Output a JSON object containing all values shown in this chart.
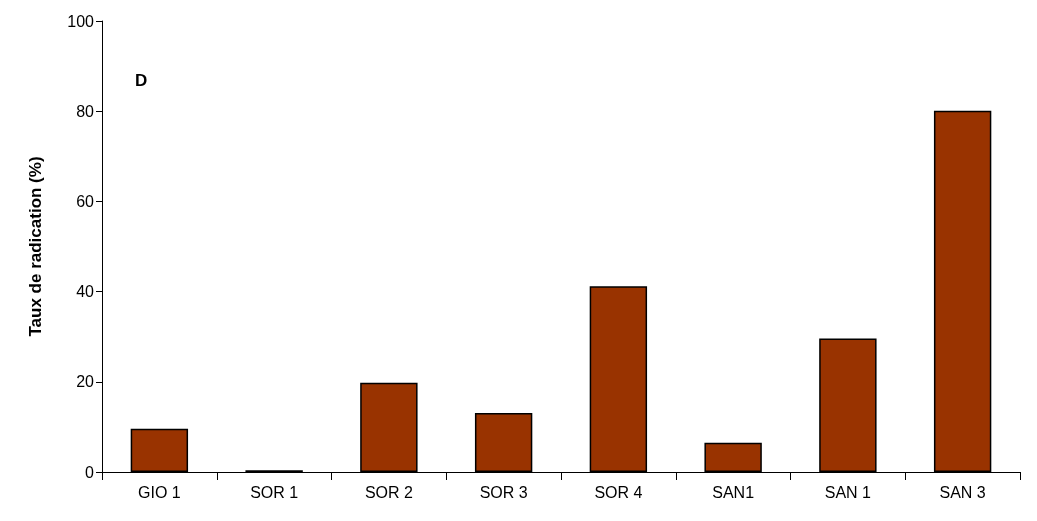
{
  "chart_data": {
    "type": "bar",
    "ylabel": "Taux de radication (%)",
    "annotations": [
      "D"
    ],
    "categories": [
      "GIO 1",
      "SOR 1",
      "SOR 2",
      "SOR 3",
      "SOR 4",
      "SAN1",
      "SAN 1",
      "SAN 3"
    ],
    "values": [
      9.6,
      0.4,
      19.8,
      13.1,
      41.2,
      6.5,
      29.6,
      80.1
    ],
    "color": "#993300",
    "ylim": [
      0,
      100
    ],
    "yticks": [
      0,
      20,
      40,
      60,
      80,
      100
    ],
    "grid": false
  }
}
